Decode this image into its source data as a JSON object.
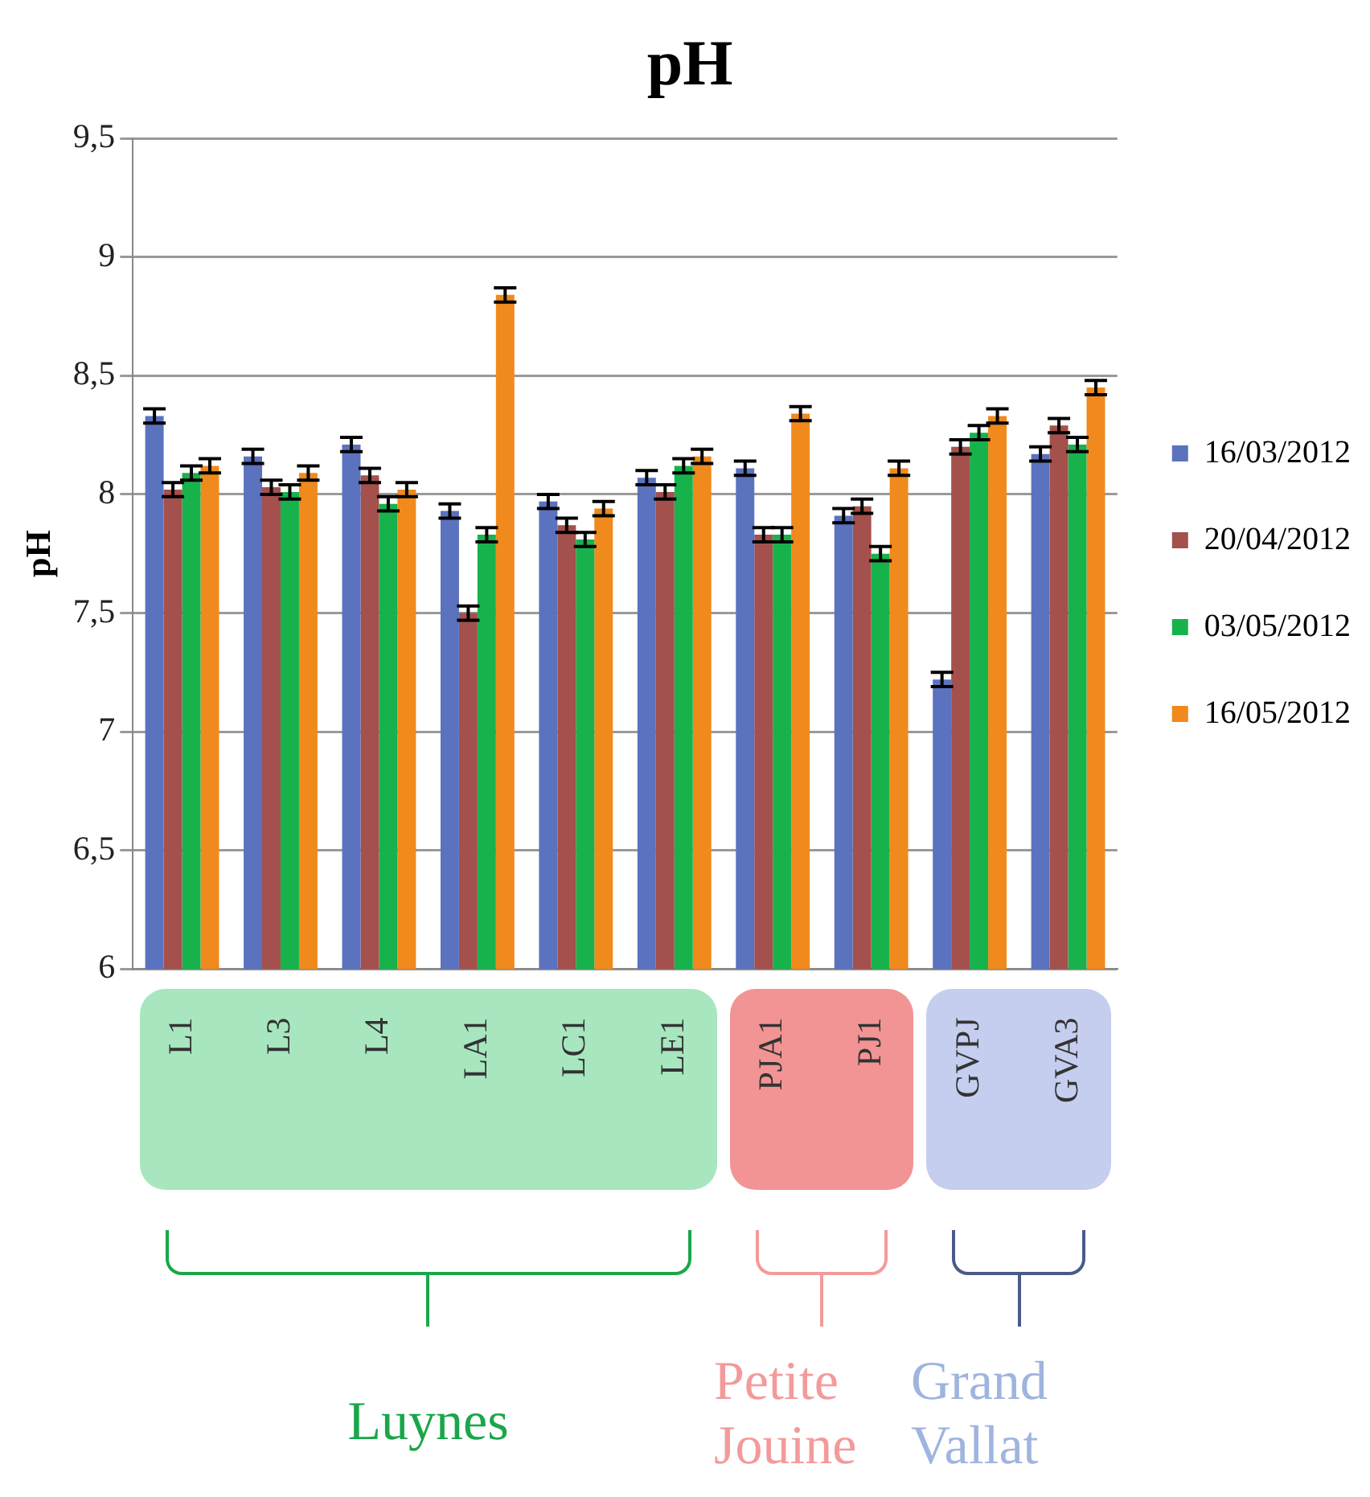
{
  "chart_data": {
    "type": "bar",
    "title": "pH",
    "ylabel": "pH",
    "categories": [
      "L1",
      "L3",
      "L4",
      "LA1",
      "LC1",
      "LE1",
      "PJA1",
      "PJ1",
      "GVPJ",
      "GVA3"
    ],
    "series": [
      {
        "name": "16/03/2012",
        "color": "#5b72be",
        "values": [
          8.33,
          8.16,
          8.21,
          7.93,
          7.97,
          8.07,
          8.11,
          7.91,
          7.22,
          8.17
        ],
        "errors": [
          0.03,
          0.03,
          0.03,
          0.03,
          0.03,
          0.03,
          0.03,
          0.03,
          0.03,
          0.03
        ]
      },
      {
        "name": "20/04/2012",
        "color": "#a4504d",
        "values": [
          8.02,
          8.03,
          8.08,
          7.5,
          7.87,
          8.01,
          7.83,
          7.95,
          8.2,
          8.29
        ],
        "errors": [
          0.03,
          0.03,
          0.03,
          0.03,
          0.03,
          0.03,
          0.03,
          0.03,
          0.03,
          0.03
        ]
      },
      {
        "name": "03/05/2012",
        "color": "#18b24c",
        "values": [
          8.09,
          8.01,
          7.96,
          7.83,
          7.81,
          8.12,
          7.83,
          7.75,
          8.26,
          8.21
        ],
        "errors": [
          0.03,
          0.03,
          0.03,
          0.03,
          0.03,
          0.03,
          0.03,
          0.03,
          0.03,
          0.03
        ]
      },
      {
        "name": "16/05/2012",
        "color": "#f08a1c",
        "values": [
          8.12,
          8.09,
          8.02,
          8.84,
          7.94,
          8.16,
          8.34,
          8.11,
          8.33,
          8.45
        ],
        "errors": [
          0.03,
          0.03,
          0.03,
          0.03,
          0.03,
          0.03,
          0.03,
          0.03,
          0.03,
          0.03
        ]
      }
    ],
    "ylim": [
      6,
      9.5
    ],
    "yticks": [
      {
        "value": 6,
        "label": "6"
      },
      {
        "value": 6.5,
        "label": "6,5"
      },
      {
        "value": 7,
        "label": "7"
      },
      {
        "value": 7.5,
        "label": "7,5"
      },
      {
        "value": 8,
        "label": "8"
      },
      {
        "value": 8.5,
        "label": "8,5"
      },
      {
        "value": 9,
        "label": "9"
      },
      {
        "value": 9.5,
        "label": "9,5"
      }
    ],
    "grid": "y",
    "legend": "right",
    "annotations": [
      "Luynes",
      "Petite\nJouine",
      "Grand\nVallat"
    ]
  }
}
